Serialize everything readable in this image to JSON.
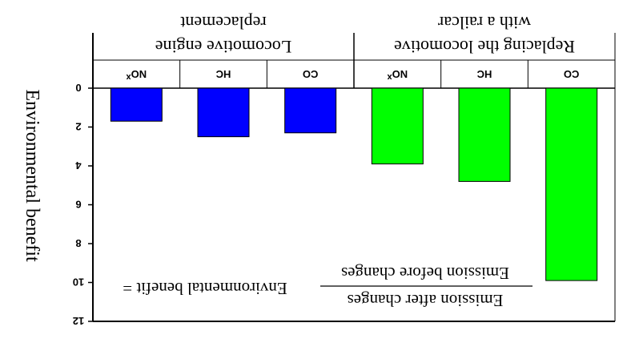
{
  "chart_data": {
    "type": "bar",
    "title": "",
    "xlabel": "",
    "ylabel": "Environmental benefit",
    "ylim": [
      0,
      12
    ],
    "yticks": [
      "0",
      "2",
      "4",
      "6",
      "8",
      "10",
      "12"
    ],
    "y_orientation": "inverted (0 at top, values grow downward)",
    "image_mirrored": "horizontally and vertically (text appears upside down)",
    "grid": false,
    "groups": [
      {
        "label": "Locomotive engine replacement",
        "label_lines": [
          "Locomotive engine",
          "replacement"
        ],
        "color": "#0000ff",
        "categories": [
          "NOx",
          "HC",
          "CO"
        ],
        "values": [
          1.7,
          2.5,
          2.3
        ]
      },
      {
        "label": "Replacing the locomotive with a railcar",
        "label_lines": [
          "Replacing the locomotive",
          "with a railcar"
        ],
        "color": "#00ff00",
        "categories": [
          "NOx",
          "HC",
          "CO"
        ],
        "values": [
          3.9,
          4.8,
          9.9
        ]
      }
    ],
    "formula": {
      "lhs": "Environmental benefit =",
      "numerator": "Emission after changes",
      "denominator": "Emission before changes"
    }
  }
}
